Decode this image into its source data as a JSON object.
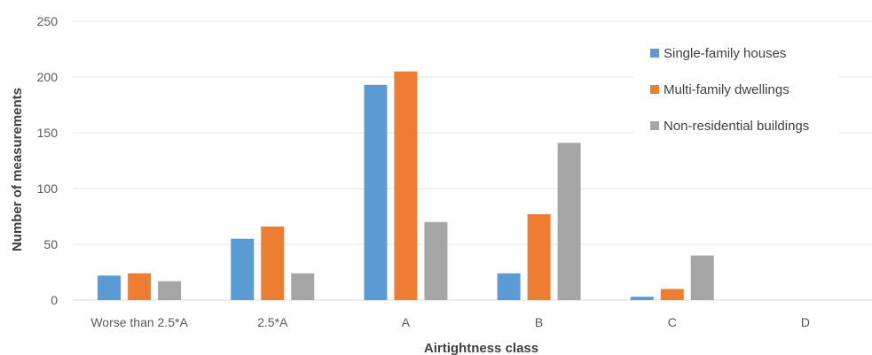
{
  "chart_data": {
    "type": "bar",
    "categories": [
      "Worse than 2.5*A",
      "2.5*A",
      "A",
      "B",
      "C",
      "D"
    ],
    "series": [
      {
        "name": "Single-family houses",
        "color": "#5b9bd5",
        "values": [
          22,
          55,
          193,
          24,
          3,
          0
        ]
      },
      {
        "name": "Multi-family dwellings",
        "color": "#ed7d31",
        "values": [
          24,
          66,
          205,
          77,
          10,
          0
        ]
      },
      {
        "name": "Non-residential buildings",
        "color": "#a5a5a5",
        "values": [
          17,
          24,
          70,
          141,
          40,
          0
        ]
      }
    ],
    "title": "",
    "xlabel": "Airtightness class",
    "ylabel": "Number of measurements",
    "ylim": [
      0,
      250
    ],
    "yticks": [
      0,
      50,
      100,
      150,
      200,
      250
    ],
    "grid": true,
    "legend_position": "top-right"
  }
}
